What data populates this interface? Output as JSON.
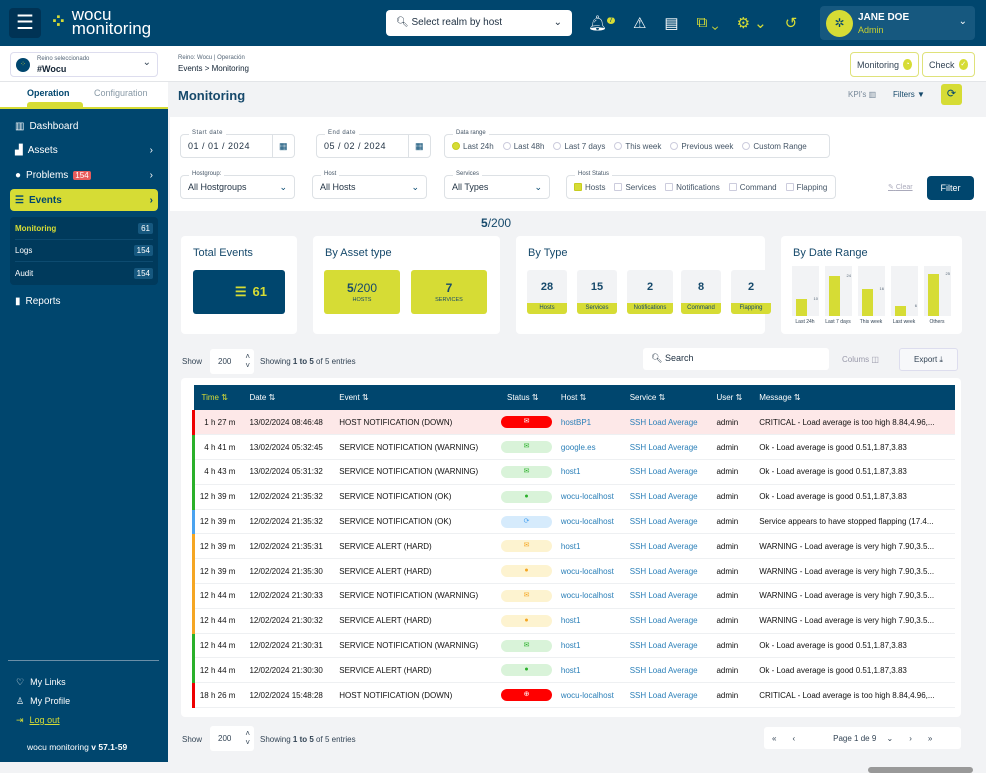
{
  "header": {
    "logo_line1": "wocu",
    "logo_line2": "monitoring",
    "realm_placeholder": "Select realm by host",
    "notif_count": "7",
    "user_name": "JANE DOE",
    "user_role": "Admin"
  },
  "realm": {
    "label": "Reino seleccionado",
    "value": "#Wocu"
  },
  "breadcrumb": {
    "context": "Reino: Wocu | Operación",
    "path1": "Events",
    "sep": ">",
    "path2": "Monitoring"
  },
  "top_buttons": {
    "monitoring": "Monitoring",
    "check": "Check"
  },
  "sidebar": {
    "tabs": [
      "Operation",
      "Configuration"
    ],
    "items": [
      {
        "label": "Dashboard"
      },
      {
        "label": "Assets"
      },
      {
        "label": "Problems",
        "badge": "154"
      },
      {
        "label": "Events"
      },
      {
        "label": "Reports"
      }
    ],
    "sub": [
      {
        "label": "Monitoring",
        "count": "61"
      },
      {
        "label": "Logs",
        "count": "154"
      },
      {
        "label": "Audit",
        "count": "154"
      }
    ],
    "footer": {
      "links": "My Links",
      "profile": "My Profile",
      "logout": "Log out",
      "app": "wocu monitoring",
      "version": "v 57.1-59"
    }
  },
  "page": {
    "title": "Monitoring",
    "kpis": "KPI's",
    "filters": "Filters"
  },
  "filters": {
    "start_label": "Start date",
    "start": "01 / 01 / 2024",
    "end_label": "End date",
    "end": "05 / 02 / 2024",
    "range_label": "Data range",
    "ranges": [
      "Last 24h",
      "Last 48h",
      "Last 7 days",
      "This week",
      "Previous week",
      "Custom Range"
    ],
    "range_selected": "Last 24h",
    "hostgroup_label": "Hostgroup:",
    "hostgroup": "All Hostgroups",
    "host_label": "Host",
    "host": "All Hosts",
    "services_label": "Services",
    "services": "All Types",
    "status_label": "Host Status",
    "statuses": [
      "Hosts",
      "Services",
      "Notifications",
      "Command",
      "Flapping"
    ],
    "status_checked": [
      "Hosts"
    ],
    "clear": "Clear",
    "filter": "Filter"
  },
  "summary": {
    "count_bold": "5",
    "count_rest": "/200",
    "total": {
      "title": "Total Events",
      "value": "61"
    },
    "asset": {
      "title": "By Asset type",
      "hosts_bold": "5",
      "hosts_rest": "/200",
      "hosts_label": "HOSTS",
      "services": "7",
      "services_label": "SERVICES"
    },
    "bytype": {
      "title": "By Type",
      "items": [
        {
          "v": "28",
          "l": "Hosts"
        },
        {
          "v": "15",
          "l": "Services"
        },
        {
          "v": "2",
          "l": "Notifications"
        },
        {
          "v": "8",
          "l": "Command"
        },
        {
          "v": "2",
          "l": "Flapping"
        }
      ]
    },
    "bydate": {
      "title": "By Date Range"
    }
  },
  "chart_data": {
    "type": "bar",
    "title": "By Date Range",
    "categories": [
      "Last 24h",
      "Last 7 days",
      "This week",
      "Last week",
      "Others"
    ],
    "values": [
      10,
      24,
      16,
      6,
      25
    ]
  },
  "table_controls": {
    "show": "Show",
    "page_size": "200",
    "showing_pre": "Showing ",
    "range": "1 to 5",
    "showing_post": " of 5 entries",
    "search": "Search",
    "columns": "Colums",
    "export": "Export"
  },
  "table": {
    "columns": [
      "Time",
      "Date",
      "Event",
      "Status",
      "Host",
      "Service",
      "User",
      "Message"
    ],
    "rows": [
      [
        "1 h 27 m",
        "13/02/2024 08:46:48",
        "HOST NOTIFICATION (DOWN)",
        "crit-mail",
        "hostBP1",
        "SSH Load Average",
        "admin",
        "CRITICAL - Load average is too high 8.84,4.96,..."
      ],
      [
        "4 h 41 m",
        "13/02/2024 05:32:45",
        "SERVICE NOTIFICATION (WARNING)",
        "ok-mail",
        "google.es",
        "SSH Load Average",
        "admin",
        "Ok - Load average is good 0.51,1.87,3.83"
      ],
      [
        "4 h 43 m",
        "13/02/2024 05:31:32",
        "SERVICE NOTIFICATION (WARNING)",
        "ok-mail",
        "host1",
        "SSH Load Average",
        "admin",
        "Ok - Load average is good 0.51,1.87,3.83"
      ],
      [
        "12 h 39 m",
        "12/02/2024 21:35:32",
        "SERVICE NOTIFICATION (OK)",
        "ok-check",
        "wocu-localhost",
        "SSH Load Average",
        "admin",
        "Ok - Load average is good 0.51,1.87,3.83"
      ],
      [
        "12 h 39 m",
        "12/02/2024 21:35:32",
        "SERVICE NOTIFICATION (OK)",
        "flap-refresh",
        "wocu-localhost",
        "SSH Load Average",
        "admin",
        "Service appears to have stopped flapping (17.4..."
      ],
      [
        "12 h 39 m",
        "12/02/2024 21:35:31",
        "SERVICE ALERT (HARD)",
        "warn-mail",
        "host1",
        "SSH Load Average",
        "admin",
        "WARNING - Load average is very high 7.90,3.5..."
      ],
      [
        "12 h 39 m",
        "12/02/2024 21:35:30",
        "SERVICE ALERT (HARD)",
        "warn-alert",
        "wocu-localhost",
        "SSH Load Average",
        "admin",
        "WARNING - Load average is very high 7.90,3.5..."
      ],
      [
        "12 h 44 m",
        "12/02/2024 21:30:33",
        "SERVICE NOTIFICATION (WARNING)",
        "warn-mail",
        "wocu-localhost",
        "SSH Load Average",
        "admin",
        "WARNING - Load average is very high 7.90,3.5..."
      ],
      [
        "12 h 44 m",
        "12/02/2024 21:30:32",
        "SERVICE ALERT (HARD)",
        "warn-alert",
        "host1",
        "SSH Load Average",
        "admin",
        "WARNING - Load average is very high 7.90,3.5..."
      ],
      [
        "12 h 44 m",
        "12/02/2024 21:30:31",
        "SERVICE NOTIFICATION (WARNING)",
        "ok-mail",
        "host1",
        "SSH Load Average",
        "admin",
        "Ok - Load average is good 0.51,1.87,3.83"
      ],
      [
        "12 h 44 m",
        "12/02/2024 21:30:30",
        "SERVICE ALERT (HARD)",
        "ok-check",
        "host1",
        "SSH Load Average",
        "admin",
        "Ok - Load average is good 0.51,1.87,3.83"
      ],
      [
        "18 h 26 m",
        "12/02/2024 15:48:28",
        "HOST NOTIFICATION (DOWN)",
        "crit-down",
        "wocu-localhost",
        "SSH Load Average",
        "admin",
        "CRITICAL - Load average is too high 8.84,4.96,..."
      ]
    ]
  },
  "pager": {
    "first": "«",
    "prev": "‹",
    "label": "Page 1 de 9",
    "next": "›",
    "last": "»"
  },
  "colors": {
    "brand": "#00466e",
    "accent": "#d6dc35",
    "critical": "#ff0000",
    "ok": "#2ab02a",
    "warning": "#f5a623",
    "flapping": "#4aa3f0"
  }
}
